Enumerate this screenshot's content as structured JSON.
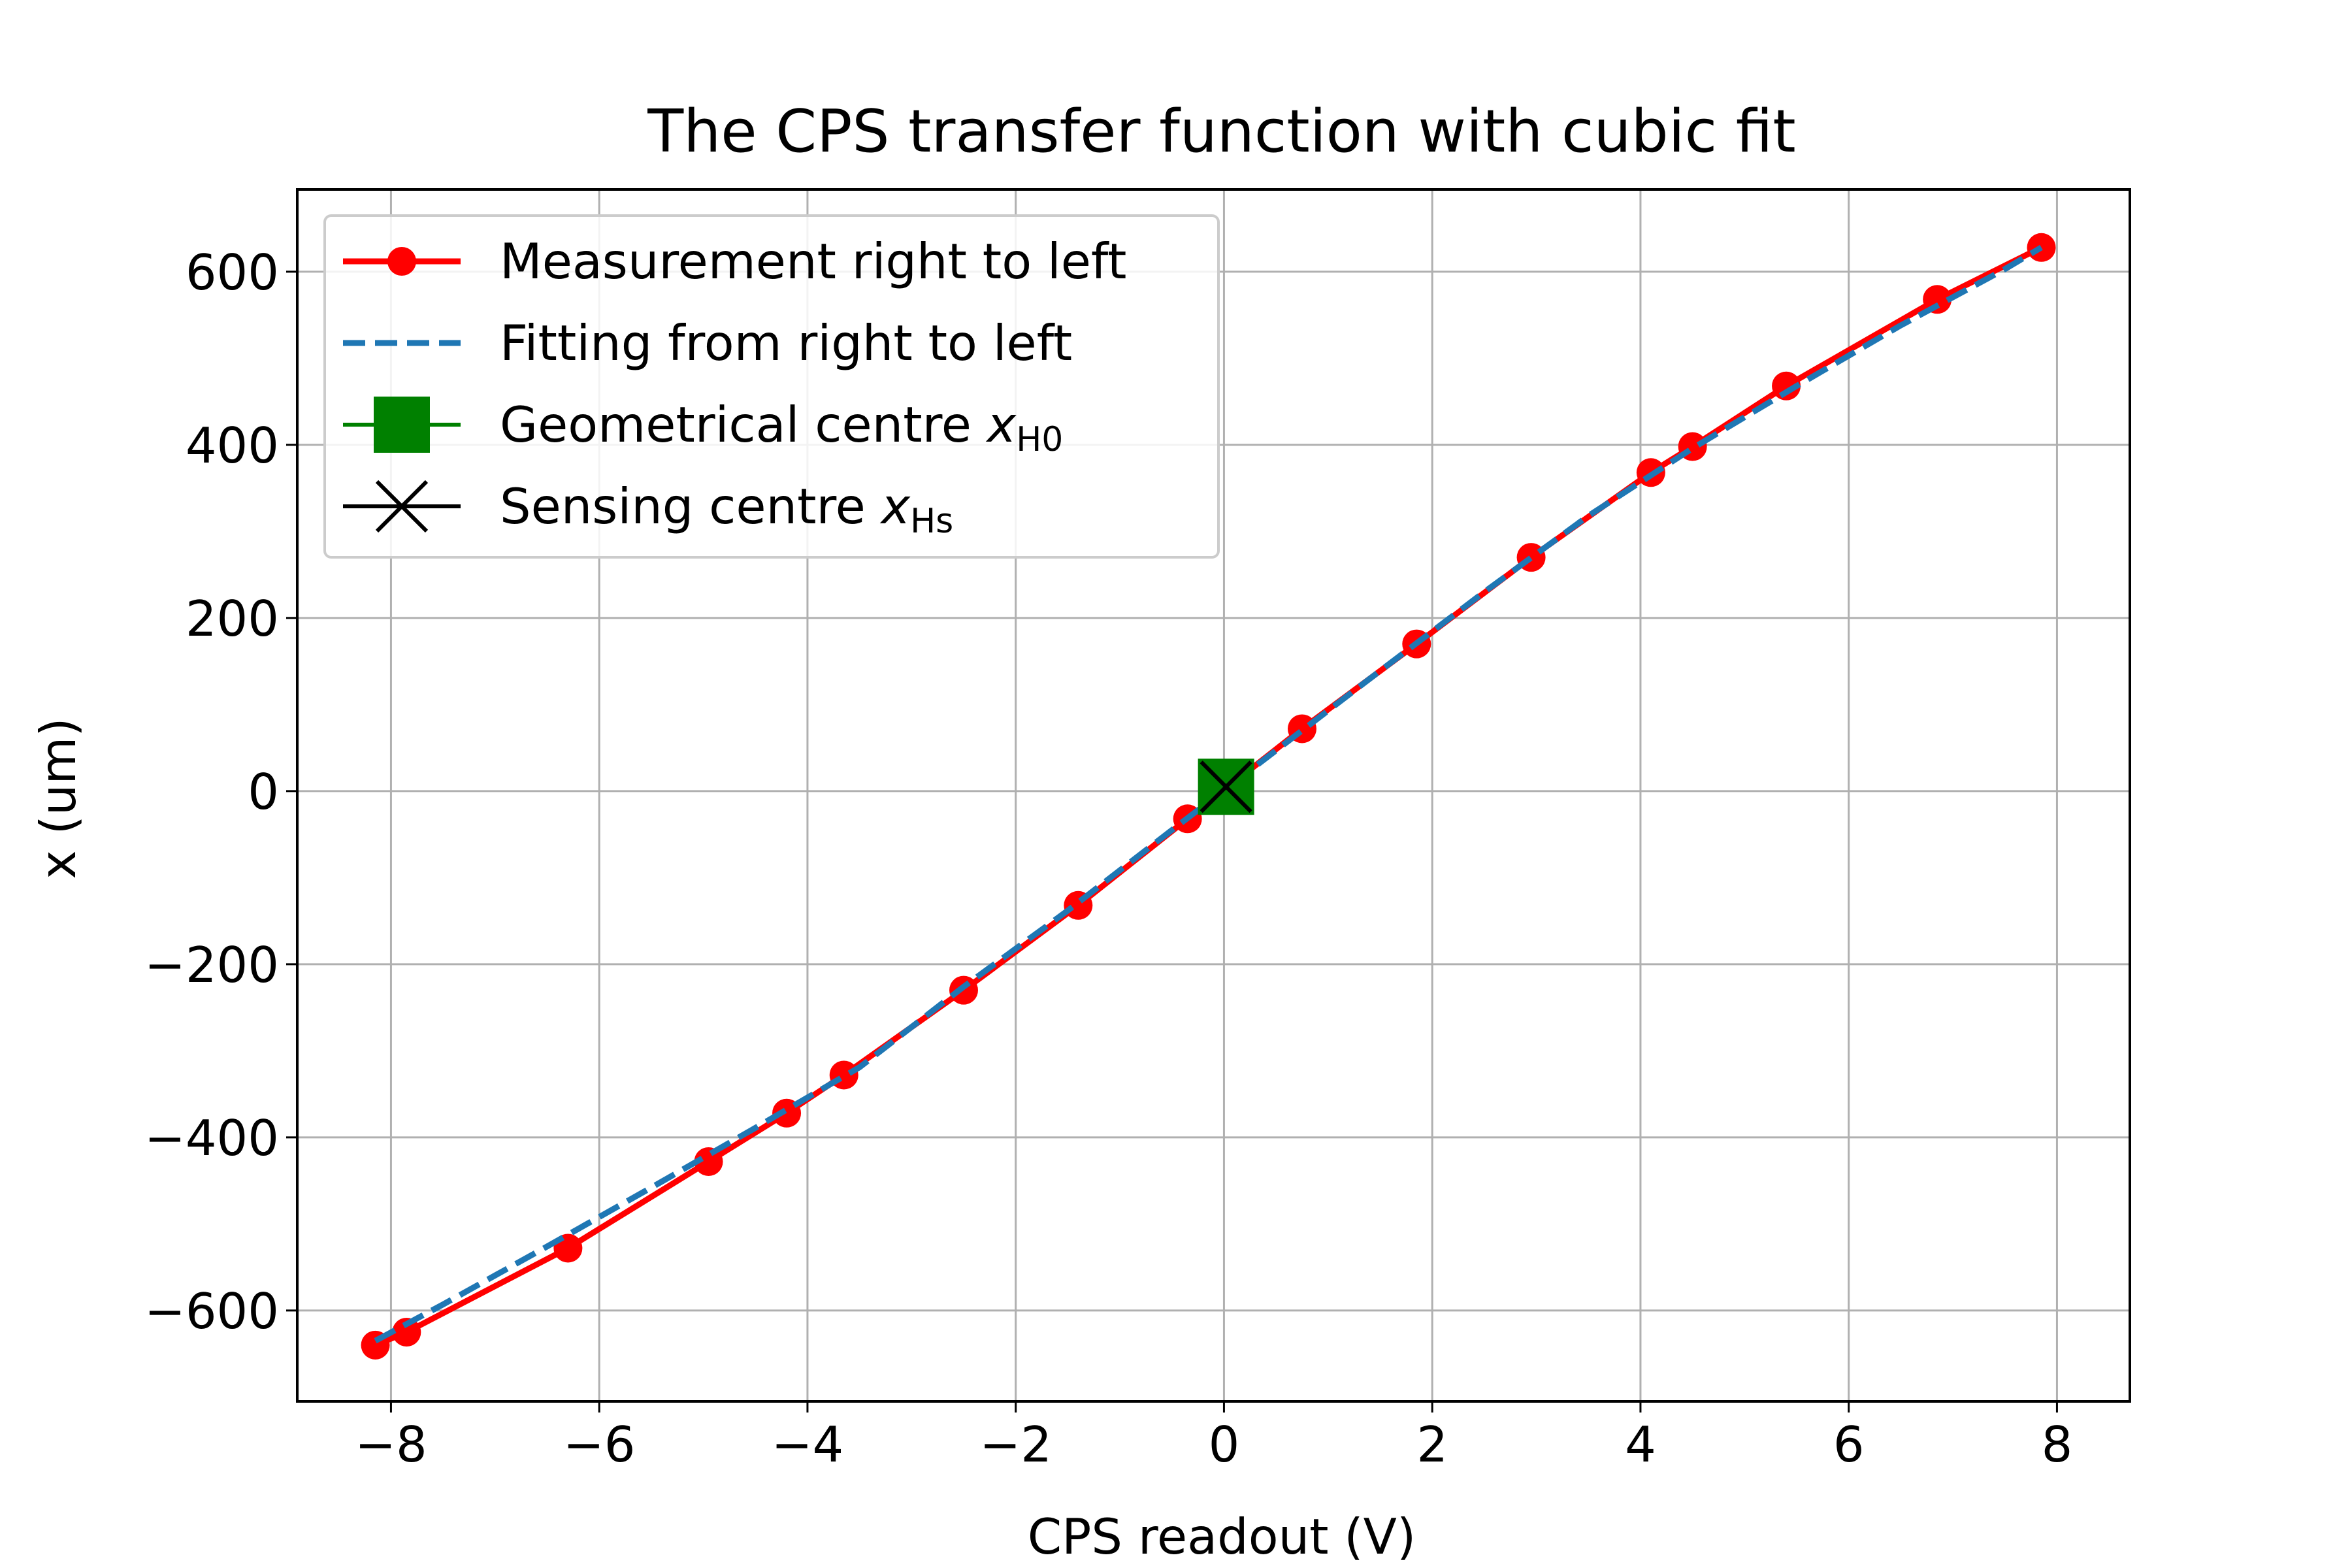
{
  "chart_data": {
    "type": "line",
    "title": "The CPS transfer function with cubic fit",
    "xlabel": "CPS readout (V)",
    "ylabel": "x (um)",
    "xlim": [
      -8.9,
      8.7
    ],
    "ylim": [
      -705,
      695
    ],
    "xticks": [
      -8,
      -6,
      -4,
      -2,
      0,
      2,
      4,
      6,
      8
    ],
    "xtick_labels": [
      "−8",
      "−6",
      "−4",
      "−2",
      "0",
      "2",
      "4",
      "6",
      "8"
    ],
    "yticks": [
      -600,
      -400,
      -200,
      0,
      200,
      400,
      600
    ],
    "ytick_labels": [
      "−600",
      "−400",
      "−200",
      "0",
      "200",
      "400",
      "600"
    ],
    "grid": true,
    "legend_position": "top-left",
    "series": [
      {
        "name": "Measurement right to left",
        "kind": "line-markers",
        "color": "#ff0000",
        "x": [
          -8.15,
          -7.85,
          -6.3,
          -4.95,
          -4.2,
          -3.65,
          -2.5,
          -1.4,
          -0.35,
          0.75,
          1.85,
          2.95,
          4.1,
          4.5,
          5.4,
          6.85,
          7.85
        ],
        "y": [
          -640,
          -625,
          -528,
          -428,
          -372,
          -328,
          -230,
          -132,
          -32,
          72,
          170,
          270,
          368,
          398,
          468,
          568,
          628
        ]
      },
      {
        "name": "Fitting from right to left",
        "kind": "dashed-line",
        "color": "#1f77b4",
        "x": [
          -8.15,
          -7.5,
          -6.5,
          -5.5,
          -4.5,
          -3.5,
          -2.5,
          -1.5,
          -0.5,
          0.5,
          1.5,
          2.5,
          3.5,
          4.5,
          5.5,
          6.5,
          7.5,
          7.85
        ],
        "y": [
          -635,
          -593,
          -526,
          -458,
          -389,
          -319,
          -226,
          -138,
          -45,
          47,
          139,
          230,
          318,
          396,
          468,
          538,
          603,
          628
        ]
      },
      {
        "name": "Geometrical centre ",
        "name_math": "x",
        "name_sub": "H0",
        "kind": "square-marker",
        "color": "#008000",
        "x": [
          0.02
        ],
        "y": [
          5
        ]
      },
      {
        "name": "Sensing centre ",
        "name_math": "x",
        "name_sub": "Hs",
        "kind": "x-marker",
        "color": "#000000",
        "x": [
          0.02
        ],
        "y": [
          5
        ]
      }
    ]
  }
}
